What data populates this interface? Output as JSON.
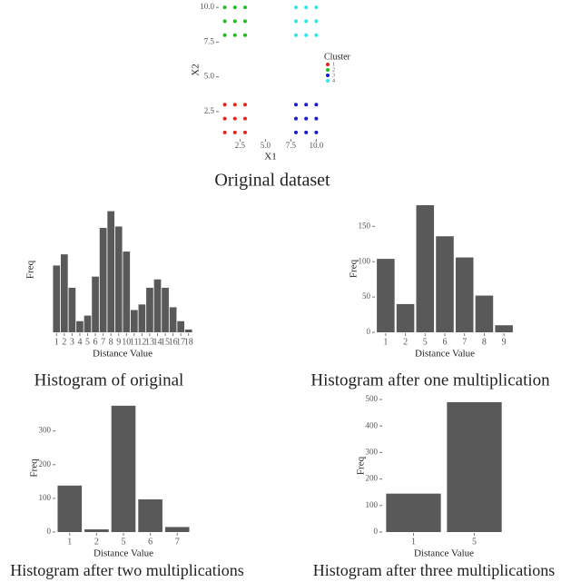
{
  "chart_data": [
    {
      "type": "scatter",
      "title": "Original dataset",
      "x_label": "X1",
      "y_label": "X2",
      "legend_title": "Cluster",
      "xlim": [
        0.5,
        10.5
      ],
      "ylim": [
        0.6,
        10.4
      ],
      "xticks": [
        2.5,
        {
          "value": 5,
          "label": "5.0"
        },
        7.5,
        {
          "value": 10,
          "label": "10.0"
        }
      ],
      "yticks": [
        2.5,
        {
          "value": 5,
          "label": "5.0"
        },
        7.5,
        {
          "value": 10,
          "label": "10.0"
        }
      ],
      "series": [
        {
          "name": "1",
          "color": "#e8221c",
          "x": [
            1,
            2,
            3,
            1,
            2,
            3,
            1,
            2,
            3
          ],
          "y": [
            1,
            1,
            1,
            2,
            2,
            2,
            3,
            3,
            3
          ]
        },
        {
          "name": "2",
          "color": "#22bb22",
          "x": [
            1,
            2,
            3,
            1,
            2,
            3,
            1,
            2,
            3
          ],
          "y": [
            8,
            8,
            8,
            9,
            9,
            9,
            10,
            10,
            10
          ]
        },
        {
          "name": "3",
          "color": "#1a1acc",
          "x": [
            8,
            9,
            10,
            8,
            9,
            10,
            8,
            9,
            10
          ],
          "y": [
            1,
            1,
            1,
            2,
            2,
            2,
            3,
            3,
            3
          ]
        },
        {
          "name": "4",
          "color": "#33e6e6",
          "x": [
            8,
            9,
            10,
            8,
            9,
            10,
            8,
            9,
            10
          ],
          "y": [
            8,
            8,
            8,
            9,
            9,
            9,
            10,
            10,
            10
          ]
        }
      ]
    },
    {
      "type": "bar",
      "title": "Histogram of original",
      "x_label": "Distance Value",
      "y_label": "Freq",
      "color": "#595959",
      "categories": [
        "1",
        "2",
        "3",
        "4",
        "5",
        "6",
        "7",
        "8",
        "9",
        "10",
        "11",
        "12",
        "13",
        "14",
        "15",
        "16",
        "17",
        "18"
      ],
      "values": [
        48,
        56,
        32,
        8,
        12,
        40,
        75,
        87,
        76,
        58,
        16,
        20,
        32,
        38,
        32,
        18,
        8,
        2
      ],
      "ylim": [
        0,
        90
      ]
    },
    {
      "type": "bar",
      "title": "Histogram after one multiplication",
      "x_label": "Distance Value",
      "y_label": "Freq",
      "color": "#595959",
      "categories": [
        "1",
        "2",
        "5",
        "6",
        "7",
        "8",
        "9"
      ],
      "values": [
        104,
        40,
        180,
        136,
        106,
        52,
        10
      ],
      "ylim": [
        0,
        180
      ],
      "yticks": [
        0,
        50,
        100,
        150
      ]
    },
    {
      "type": "bar",
      "title": "Histogram after two multiplications",
      "x_label": "Distance Value",
      "y_label": "Freq",
      "color": "#595959",
      "categories": [
        "1",
        "2",
        "5",
        "6",
        "7"
      ],
      "values": [
        138,
        8,
        375,
        97,
        15
      ],
      "ylim": [
        0,
        380
      ],
      "yticks": [
        0,
        100,
        200,
        300
      ]
    },
    {
      "type": "bar",
      "title": "Histogram after three multiplications",
      "x_label": "Distance Value",
      "y_label": "Freq",
      "color": "#595959",
      "categories": [
        "1",
        "5"
      ],
      "values": [
        145,
        490
      ],
      "ylim": [
        0,
        500
      ],
      "yticks": [
        0,
        100,
        200,
        300,
        400,
        500
      ]
    }
  ]
}
